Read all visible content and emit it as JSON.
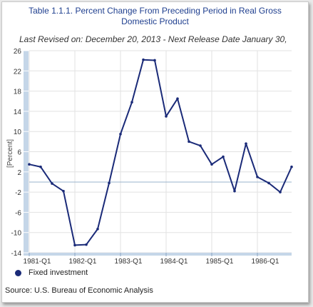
{
  "title_line1": "Table 1.1.1. Percent Change From Preceding Period in Real Gross",
  "title_line2": "Domestic Product",
  "subtitle": "Last Revised on: December 20, 2013 - Next Release Date January 30,",
  "source": "Source: U.S. Bureau of Economic Analysis",
  "colors": {
    "series": "#1a2a78",
    "title": "#1f3f8f",
    "axis_band": "#c5d6e8",
    "zero_line": "#9ab3cc",
    "grid": "#e2e2e2"
  },
  "chart_data": {
    "type": "line",
    "ylabel": "[Percent]",
    "ylim": [
      -14,
      26
    ],
    "y_ticks": [
      -14,
      -10,
      -6,
      -2,
      2,
      6,
      10,
      14,
      18,
      22,
      26
    ],
    "tick_labels": [
      "1981-Q1",
      "1982-Q1",
      "1983-Q1",
      "1984-Q1",
      "1985-Q1",
      "1986-Q1"
    ],
    "grid": true,
    "legend_position": "bottom-left",
    "series": [
      {
        "name": "Fixed investment",
        "x": [
          "1981-Q1",
          "1981-Q2",
          "1981-Q3",
          "1981-Q4",
          "1982-Q1",
          "1982-Q2",
          "1982-Q3",
          "1982-Q4",
          "1983-Q1",
          "1983-Q2",
          "1983-Q3",
          "1983-Q4",
          "1984-Q1",
          "1984-Q2",
          "1984-Q3",
          "1984-Q4",
          "1985-Q1",
          "1985-Q2",
          "1985-Q3",
          "1985-Q4",
          "1986-Q1",
          "1986-Q2",
          "1986-Q3",
          "1986-Q4"
        ],
        "values": [
          3.5,
          3.0,
          -0.3,
          -1.8,
          -12.5,
          -12.4,
          -9.3,
          -0.2,
          9.5,
          15.8,
          24.2,
          24.1,
          13.0,
          16.5,
          8.0,
          7.2,
          3.5,
          5.0,
          -1.8,
          7.6,
          1.0,
          -0.2,
          -2.0,
          3.0
        ]
      }
    ]
  }
}
